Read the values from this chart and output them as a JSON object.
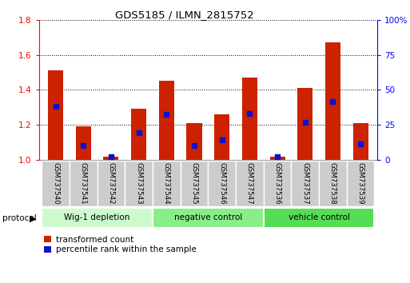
{
  "title": "GDS5185 / ILMN_2815752",
  "samples": [
    "GSM737540",
    "GSM737541",
    "GSM737542",
    "GSM737543",
    "GSM737544",
    "GSM737545",
    "GSM737546",
    "GSM737547",
    "GSM737536",
    "GSM737537",
    "GSM737538",
    "GSM737539"
  ],
  "transformed_counts": [
    1.51,
    1.19,
    1.02,
    1.29,
    1.45,
    1.21,
    1.26,
    1.47,
    1.02,
    1.41,
    1.67,
    1.21
  ],
  "percentile_ranks": [
    38.5,
    10.5,
    2.5,
    19.5,
    32.5,
    10.5,
    14.5,
    33.0,
    2.5,
    27.0,
    41.5,
    11.5
  ],
  "groups": [
    {
      "label": "Wig-1 depletion",
      "start": 0,
      "end": 4,
      "color": "#cdfacd"
    },
    {
      "label": "negative control",
      "start": 4,
      "end": 8,
      "color": "#88ee88"
    },
    {
      "label": "vehicle control",
      "start": 8,
      "end": 12,
      "color": "#55dd55"
    }
  ],
  "ylim_left": [
    1.0,
    1.8
  ],
  "ylim_right": [
    0,
    100
  ],
  "yticks_left": [
    1.0,
    1.2,
    1.4,
    1.6,
    1.8
  ],
  "yticks_right": [
    0,
    25,
    50,
    75,
    100
  ],
  "ytick_labels_right": [
    "0",
    "25",
    "50",
    "75",
    "100%"
  ],
  "bar_color": "#cc2200",
  "dot_color": "#1111cc",
  "bg_color": "#ffffff",
  "xlabel_bg": "#cccccc",
  "legend_red_label": "transformed count",
  "legend_blue_label": "percentile rank within the sample",
  "protocol_label": "protocol"
}
